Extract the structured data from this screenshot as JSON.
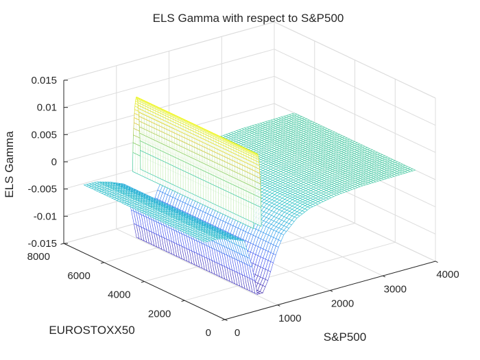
{
  "chart_data": {
    "type": "surface",
    "title": "ELS Gamma with respect to S&P500",
    "xlabel": "S&P500",
    "ylabel": "EUROSTOXX50",
    "zlabel": "ELS Gamma",
    "xlim": [
      0,
      4000
    ],
    "ylim": [
      0,
      8000
    ],
    "zlim": [
      -0.015,
      0.015
    ],
    "x_ticks": [
      0,
      1000,
      2000,
      3000,
      4000
    ],
    "x_tick_labels": [
      "0",
      "1000",
      "2000",
      "3000",
      "4000"
    ],
    "y_ticks": [
      0,
      2000,
      4000,
      6000,
      8000
    ],
    "y_tick_labels": [
      "0",
      "2000",
      "4000",
      "6000",
      "8000"
    ],
    "z_ticks": [
      -0.015,
      -0.01,
      -0.005,
      0,
      0.005,
      0.01,
      0.015
    ],
    "z_tick_labels": [
      "-0.015",
      "-0.01",
      "-0.005",
      "0",
      "0.005",
      "0.01",
      "0.015"
    ],
    "grid": true,
    "colormap": "parula",
    "colormap_colors": [
      "#3e26a8",
      "#4253f0",
      "#2f9bf0",
      "#1fc0c0",
      "#6ccf72",
      "#e6c02f",
      "#f9fb15"
    ],
    "surface": {
      "description": "Gamma along S&P500 is constant across EUROSTOXX50 from about 1000 to 7000",
      "x_samples": [
        0,
        250,
        500,
        750,
        900,
        1000,
        1100,
        1200,
        1300,
        1400,
        1500,
        1750,
        2000,
        2500,
        3000,
        3500,
        4000
      ],
      "gamma_values": [
        -0.0025,
        -0.0026,
        -0.0033,
        -0.0043,
        -0.0095,
        -0.0148,
        -0.0148,
        -0.0128,
        -0.0098,
        -0.0072,
        -0.0052,
        -0.0028,
        -0.0016,
        -0.0006,
        -0.0002,
        -0.0001,
        0.0
      ],
      "y_range": [
        1000,
        7000
      ],
      "ridge": {
        "x": 1000,
        "peak": 0.011,
        "base": -0.0025,
        "width_in_x": 75
      }
    }
  }
}
